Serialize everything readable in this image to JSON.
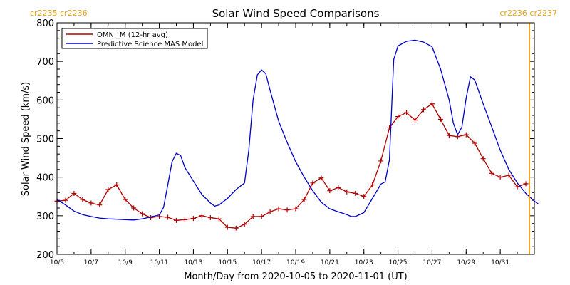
{
  "chart_data": {
    "type": "line",
    "title": "Solar Wind Speed Comparisons",
    "xlabel": "Month/Day from 2020-10-05 to 2020-11-01 (UT)",
    "ylabel": "Solar Wind Speed (km/s)",
    "xlim": [
      "2020-10-05",
      "2020-11-02"
    ],
    "ylim": [
      200,
      800
    ],
    "x_tick_labels": [
      "10/5",
      "10/7",
      "10/9",
      "10/11",
      "10/13",
      "10/15",
      "10/17",
      "10/19",
      "10/21",
      "10/23",
      "10/25",
      "10/27",
      "10/29",
      "10/31"
    ],
    "x_tick_values": [
      "2020-10-05",
      "2020-10-07",
      "2020-10-09",
      "2020-10-11",
      "2020-10-13",
      "2020-10-15",
      "2020-10-17",
      "2020-10-19",
      "2020-10-21",
      "2020-10-23",
      "2020-10-25",
      "2020-10-27",
      "2020-10-29",
      "2020-10-31"
    ],
    "y_ticks": [
      200,
      300,
      400,
      500,
      600,
      700,
      800
    ],
    "legend_placement": "top-left",
    "carrington_labels": {
      "left": "cr2235 cr2236",
      "right": "cr2236 cr2237"
    },
    "carrington_line_x": "2020-11-02",
    "series": [
      {
        "name": "OMNI_M (12-hr avg)",
        "color": "#b00000",
        "marker": "plus",
        "points": [
          [
            "2020-10-05 00:00",
            338
          ],
          [
            "2020-10-05 12:00",
            340
          ],
          [
            "2020-10-06 00:00",
            358
          ],
          [
            "2020-10-06 12:00",
            342
          ],
          [
            "2020-10-07 00:00",
            333
          ],
          [
            "2020-10-07 12:00",
            328
          ],
          [
            "2020-10-08 00:00",
            368
          ],
          [
            "2020-10-08 12:00",
            380
          ],
          [
            "2020-10-09 00:00",
            342
          ],
          [
            "2020-10-09 12:00",
            320
          ],
          [
            "2020-10-10 00:00",
            305
          ],
          [
            "2020-10-10 12:00",
            295
          ],
          [
            "2020-10-11 00:00",
            298
          ],
          [
            "2020-10-11 12:00",
            296
          ],
          [
            "2020-10-12 00:00",
            288
          ],
          [
            "2020-10-12 12:00",
            290
          ],
          [
            "2020-10-13 00:00",
            293
          ],
          [
            "2020-10-13 12:00",
            300
          ],
          [
            "2020-10-14 00:00",
            295
          ],
          [
            "2020-10-14 12:00",
            292
          ],
          [
            "2020-10-15 00:00",
            270
          ],
          [
            "2020-10-15 12:00",
            268
          ],
          [
            "2020-10-16 00:00",
            278
          ],
          [
            "2020-10-16 12:00",
            298
          ],
          [
            "2020-10-17 00:00",
            298
          ],
          [
            "2020-10-17 12:00",
            310
          ],
          [
            "2020-10-18 00:00",
            318
          ],
          [
            "2020-10-18 12:00",
            315
          ],
          [
            "2020-10-19 00:00",
            318
          ],
          [
            "2020-10-19 12:00",
            342
          ],
          [
            "2020-10-20 00:00",
            385
          ],
          [
            "2020-10-20 12:00",
            398
          ],
          [
            "2020-10-21 00:00",
            365
          ],
          [
            "2020-10-21 12:00",
            373
          ],
          [
            "2020-10-22 00:00",
            362
          ],
          [
            "2020-10-22 12:00",
            358
          ],
          [
            "2020-10-23 00:00",
            350
          ],
          [
            "2020-10-23 12:00",
            380
          ],
          [
            "2020-10-24 00:00",
            442
          ],
          [
            "2020-10-24 12:00",
            528
          ],
          [
            "2020-10-25 00:00",
            557
          ],
          [
            "2020-10-25 12:00",
            567
          ],
          [
            "2020-10-26 00:00",
            548
          ],
          [
            "2020-10-26 12:00",
            575
          ],
          [
            "2020-10-27 00:00",
            590
          ],
          [
            "2020-10-27 12:00",
            550
          ],
          [
            "2020-10-28 00:00",
            508
          ],
          [
            "2020-10-28 12:00",
            505
          ],
          [
            "2020-10-29 00:00",
            510
          ],
          [
            "2020-10-29 12:00",
            488
          ],
          [
            "2020-10-30 00:00",
            448
          ],
          [
            "2020-10-30 12:00",
            410
          ],
          [
            "2020-10-31 00:00",
            400
          ],
          [
            "2020-10-31 12:00",
            405
          ],
          [
            "2020-11-01 00:00",
            375
          ],
          [
            "2020-11-01 12:00",
            383
          ]
        ]
      },
      {
        "name": "Predictive Science MAS Model",
        "color": "#0000c8",
        "marker": "none",
        "points": [
          [
            "2020-10-05 00:00",
            342
          ],
          [
            "2020-10-05 12:00",
            328
          ],
          [
            "2020-10-06 00:00",
            312
          ],
          [
            "2020-10-06 12:00",
            303
          ],
          [
            "2020-10-07 00:00",
            298
          ],
          [
            "2020-10-07 12:00",
            294
          ],
          [
            "2020-10-08 00:00",
            292
          ],
          [
            "2020-10-08 12:00",
            291
          ],
          [
            "2020-10-09 00:00",
            290
          ],
          [
            "2020-10-09 12:00",
            289
          ],
          [
            "2020-10-10 00:00",
            292
          ],
          [
            "2020-10-10 12:00",
            297
          ],
          [
            "2020-10-11 00:00",
            302
          ],
          [
            "2020-10-11 06:00",
            322
          ],
          [
            "2020-10-11 12:00",
            380
          ],
          [
            "2020-10-11 18:00",
            440
          ],
          [
            "2020-10-12 00:00",
            462
          ],
          [
            "2020-10-12 06:00",
            456
          ],
          [
            "2020-10-12 12:00",
            425
          ],
          [
            "2020-10-13 00:00",
            390
          ],
          [
            "2020-10-13 12:00",
            355
          ],
          [
            "2020-10-14 00:00",
            333
          ],
          [
            "2020-10-14 06:00",
            325
          ],
          [
            "2020-10-14 12:00",
            328
          ],
          [
            "2020-10-15 00:00",
            345
          ],
          [
            "2020-10-15 12:00",
            368
          ],
          [
            "2020-10-16 00:00",
            385
          ],
          [
            "2020-10-16 06:00",
            470
          ],
          [
            "2020-10-16 12:00",
            600
          ],
          [
            "2020-10-16 18:00",
            665
          ],
          [
            "2020-10-17 00:00",
            678
          ],
          [
            "2020-10-17 06:00",
            668
          ],
          [
            "2020-10-17 12:00",
            625
          ],
          [
            "2020-10-18 00:00",
            545
          ],
          [
            "2020-10-18 12:00",
            490
          ],
          [
            "2020-10-19 00:00",
            440
          ],
          [
            "2020-10-19 12:00",
            400
          ],
          [
            "2020-10-20 00:00",
            365
          ],
          [
            "2020-10-20 12:00",
            335
          ],
          [
            "2020-10-21 00:00",
            318
          ],
          [
            "2020-10-21 12:00",
            310
          ],
          [
            "2020-10-22 00:00",
            303
          ],
          [
            "2020-10-22 06:00",
            298
          ],
          [
            "2020-10-22 12:00",
            298
          ],
          [
            "2020-10-23 00:00",
            308
          ],
          [
            "2020-10-23 12:00",
            345
          ],
          [
            "2020-10-24 00:00",
            382
          ],
          [
            "2020-10-24 06:00",
            388
          ],
          [
            "2020-10-24 12:00",
            445
          ],
          [
            "2020-10-24 18:00",
            705
          ],
          [
            "2020-10-25 00:00",
            740
          ],
          [
            "2020-10-25 12:00",
            752
          ],
          [
            "2020-10-26 00:00",
            755
          ],
          [
            "2020-10-26 12:00",
            750
          ],
          [
            "2020-10-27 00:00",
            738
          ],
          [
            "2020-10-27 12:00",
            680
          ],
          [
            "2020-10-28 00:00",
            600
          ],
          [
            "2020-10-28 06:00",
            540
          ],
          [
            "2020-10-28 12:00",
            510
          ],
          [
            "2020-10-28 18:00",
            530
          ],
          [
            "2020-10-29 00:00",
            605
          ],
          [
            "2020-10-29 06:00",
            660
          ],
          [
            "2020-10-29 12:00",
            652
          ],
          [
            "2020-10-30 00:00",
            590
          ],
          [
            "2020-10-30 12:00",
            530
          ],
          [
            "2020-10-31 00:00",
            470
          ],
          [
            "2020-10-31 12:00",
            420
          ],
          [
            "2020-11-01 00:00",
            385
          ],
          [
            "2020-11-01 12:00",
            358
          ],
          [
            "2020-11-02 00:00",
            338
          ],
          [
            "2020-11-02 06:00",
            330
          ]
        ]
      }
    ]
  }
}
